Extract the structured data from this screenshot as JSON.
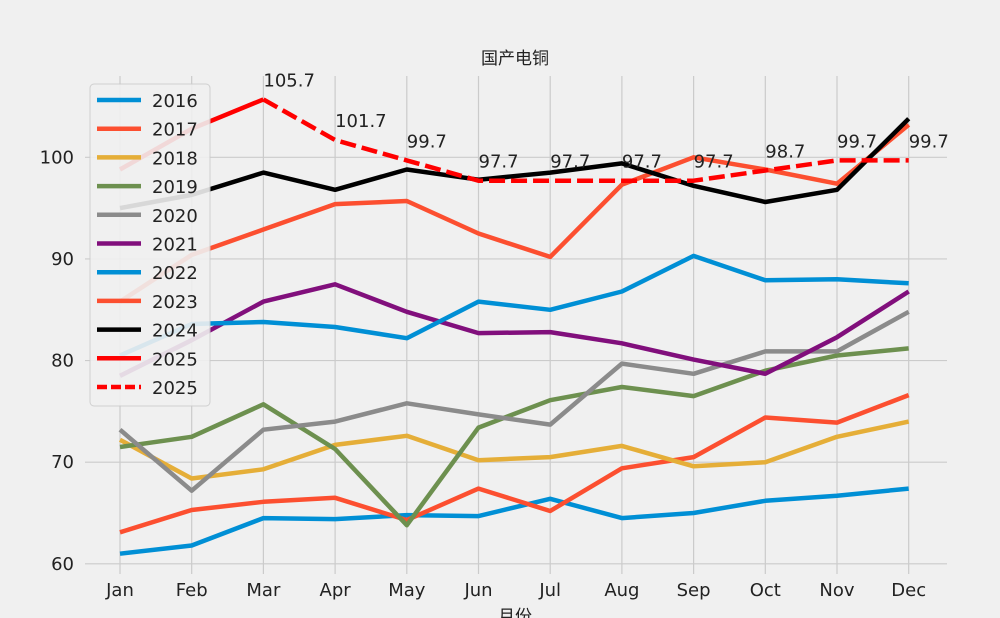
{
  "chart_data": {
    "type": "line",
    "title": "国产电铜",
    "xlabel": "月份",
    "ylabel": "",
    "categories": [
      "Jan",
      "Feb",
      "Mar",
      "Apr",
      "May",
      "Jun",
      "Jul",
      "Aug",
      "Sep",
      "Oct",
      "Nov",
      "Dec"
    ],
    "ylim": [
      59,
      108
    ],
    "yticks": [
      60,
      70,
      80,
      90,
      100
    ],
    "grid": true,
    "legend_position": "upper-left",
    "series": [
      {
        "name": "2016",
        "color": "#008fd5",
        "dash": false,
        "values": [
          61.0,
          61.8,
          64.5,
          64.4,
          64.8,
          64.7,
          66.4,
          64.5,
          65.0,
          66.2,
          66.7,
          67.4
        ]
      },
      {
        "name": "2017",
        "color": "#fc4f30",
        "dash": false,
        "values": [
          63.1,
          65.3,
          66.1,
          66.5,
          64.3,
          67.4,
          65.2,
          69.4,
          70.5,
          74.4,
          73.9,
          76.6
        ]
      },
      {
        "name": "2018",
        "color": "#e5ae38",
        "dash": false,
        "values": [
          72.2,
          68.4,
          69.3,
          71.7,
          72.6,
          70.2,
          70.5,
          71.6,
          69.6,
          70.0,
          72.5,
          74.0
        ]
      },
      {
        "name": "2019",
        "color": "#6d904f",
        "dash": false,
        "values": [
          71.5,
          72.5,
          75.7,
          71.3,
          63.8,
          73.4,
          76.1,
          77.4,
          76.5,
          79.0,
          80.5,
          81.2
        ]
      },
      {
        "name": "2020",
        "color": "#8b8b8b",
        "dash": false,
        "values": [
          73.2,
          67.2,
          73.2,
          74.0,
          75.8,
          74.7,
          73.7,
          79.7,
          78.7,
          80.9,
          80.9,
          84.8
        ]
      },
      {
        "name": "2021",
        "color": "#810f7c",
        "dash": false,
        "values": [
          78.5,
          82.0,
          85.8,
          87.5,
          84.8,
          82.7,
          82.8,
          81.7,
          80.1,
          78.7,
          82.3,
          86.8
        ]
      },
      {
        "name": "2022",
        "color": "#008fd5",
        "dash": false,
        "values": [
          80.5,
          83.6,
          83.8,
          83.3,
          82.2,
          85.8,
          85.0,
          86.8,
          90.3,
          87.9,
          88.0,
          87.6
        ]
      },
      {
        "name": "2023",
        "color": "#fc4f30",
        "dash": false,
        "values": [
          85.8,
          90.4,
          92.9,
          95.4,
          95.7,
          92.5,
          90.2,
          97.3,
          100.0,
          98.8,
          97.4,
          103.2
        ]
      },
      {
        "name": "2024",
        "color": "#000000",
        "dash": false,
        "values": [
          95.0,
          96.3,
          98.5,
          96.8,
          98.8,
          97.8,
          98.5,
          99.4,
          97.2,
          95.6,
          96.8,
          103.8
        ]
      },
      {
        "name": "2025",
        "color": "#ff0000",
        "dash": false,
        "values": [
          98.8,
          102.8,
          105.7,
          null,
          null,
          null,
          null,
          null,
          null,
          null,
          null,
          null
        ]
      },
      {
        "name": "2025",
        "color": "#ff0000",
        "dash": true,
        "values": [
          null,
          null,
          105.7,
          101.7,
          99.7,
          97.7,
          97.7,
          97.7,
          97.7,
          98.7,
          99.7,
          99.7
        ]
      }
    ],
    "annotations": [
      {
        "x": "Mar",
        "y": 105.7,
        "text": "105.7"
      },
      {
        "x": "Apr",
        "y": 101.7,
        "text": "101.7"
      },
      {
        "x": "May",
        "y": 99.7,
        "text": "99.7"
      },
      {
        "x": "Jun",
        "y": 97.7,
        "text": "97.7"
      },
      {
        "x": "Jul",
        "y": 97.7,
        "text": "97.7"
      },
      {
        "x": "Aug",
        "y": 97.7,
        "text": "97.7"
      },
      {
        "x": "Sep",
        "y": 97.7,
        "text": "97.7"
      },
      {
        "x": "Oct",
        "y": 98.7,
        "text": "98.7"
      },
      {
        "x": "Nov",
        "y": 99.7,
        "text": "99.7"
      },
      {
        "x": "Dec",
        "y": 99.7,
        "text": "99.7"
      }
    ]
  }
}
